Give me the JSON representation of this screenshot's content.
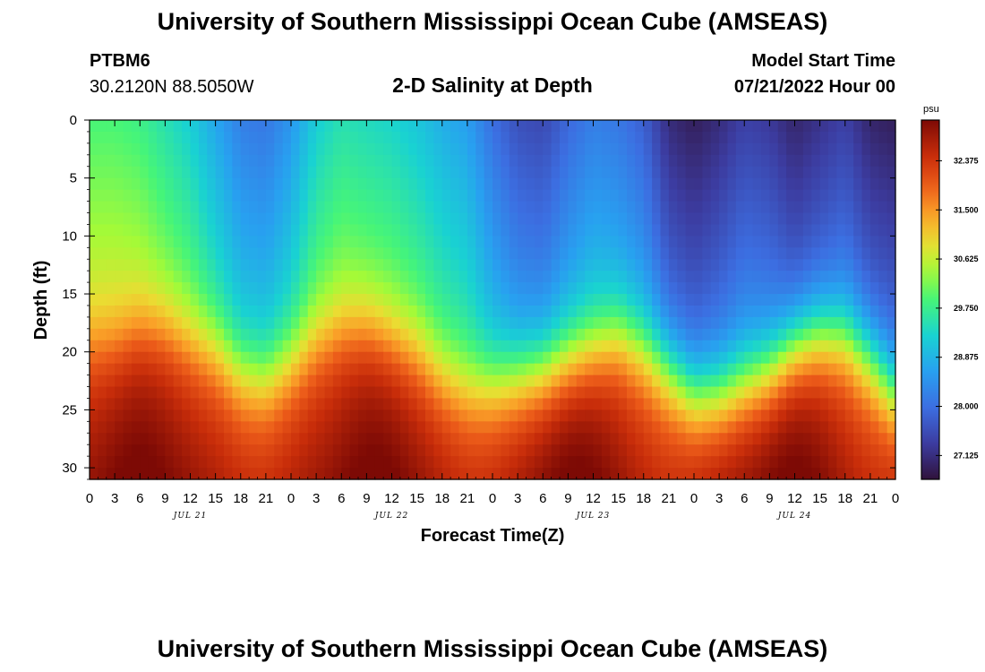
{
  "header": {
    "title": "University of Southern Mississippi Ocean Cube (AMSEAS)",
    "station": "PTBM6",
    "coords": "30.2120N  88.5050W",
    "subtitle": "2-D Salinity at Depth",
    "model_label": "Model Start Time",
    "model_time": "07/21/2022 Hour 00"
  },
  "footer": {
    "title": "University of Southern Mississippi Ocean Cube (AMSEAS)"
  },
  "chart_data": {
    "type": "heatmap",
    "title": "2-D Salinity at Depth",
    "xlabel": "Forecast Time(Z)",
    "ylabel": "Depth (ft)",
    "x_ticks": [
      "0",
      "3",
      "6",
      "9",
      "12",
      "15",
      "18",
      "21",
      "0",
      "3",
      "6",
      "9",
      "12",
      "15",
      "18",
      "21",
      "0",
      "3",
      "6",
      "9",
      "12",
      "15",
      "18",
      "21",
      "0",
      "3",
      "6",
      "9",
      "12",
      "15",
      "18",
      "21",
      "0"
    ],
    "x_range_hours": [
      0,
      96
    ],
    "date_labels": [
      {
        "label": "JUL 21",
        "hour": 12
      },
      {
        "label": "JUL 22",
        "hour": 36
      },
      {
        "label": "JUL 23",
        "hour": 60
      },
      {
        "label": "JUL 24",
        "hour": 84
      }
    ],
    "y_ticks": [
      "0",
      "5",
      "10",
      "15",
      "20",
      "25",
      "30"
    ],
    "y_tick_values": [
      0,
      5,
      10,
      15,
      20,
      25,
      30
    ],
    "y_range_ft": [
      0,
      31
    ],
    "colorbar": {
      "unit": "psu",
      "range": [
        26.7,
        33.1
      ],
      "ticks": [
        "32.375",
        "31.500",
        "30.625",
        "29.750",
        "28.875",
        "28.000",
        "27.125"
      ],
      "tick_values": [
        32.375,
        31.5,
        30.625,
        29.75,
        28.875,
        28.0,
        27.125
      ]
    },
    "surface_salinity_psu": [
      29.9,
      29.9,
      29.8,
      29.5,
      29.2,
      28.7,
      28.2,
      28.1,
      28.5,
      29.2,
      29.5,
      29.4,
      29.3,
      29.1,
      28.8,
      28.6,
      28.0,
      27.6,
      27.5,
      27.9,
      28.2,
      28.1,
      27.8,
      27.1,
      26.9,
      27.1,
      27.4,
      27.3,
      27.0,
      27.2,
      27.4,
      27.0,
      26.9
    ],
    "bottom_salinity_psu": 32.5,
    "halocline_depth_ft": [
      18,
      18,
      17,
      17,
      18,
      19,
      21,
      21.5,
      20,
      18,
      17,
      17,
      18,
      19,
      21,
      22,
      22,
      21.5,
      21,
      20,
      19,
      18,
      19,
      21,
      23,
      23,
      22,
      21,
      19,
      18,
      18,
      20,
      23
    ],
    "bottom_max_hours": [
      6,
      34,
      58,
      84
    ],
    "bottom_min_hours": [
      20,
      46,
      69,
      94
    ]
  },
  "colors": {
    "background": "#ffffff",
    "axis": "#000000"
  }
}
